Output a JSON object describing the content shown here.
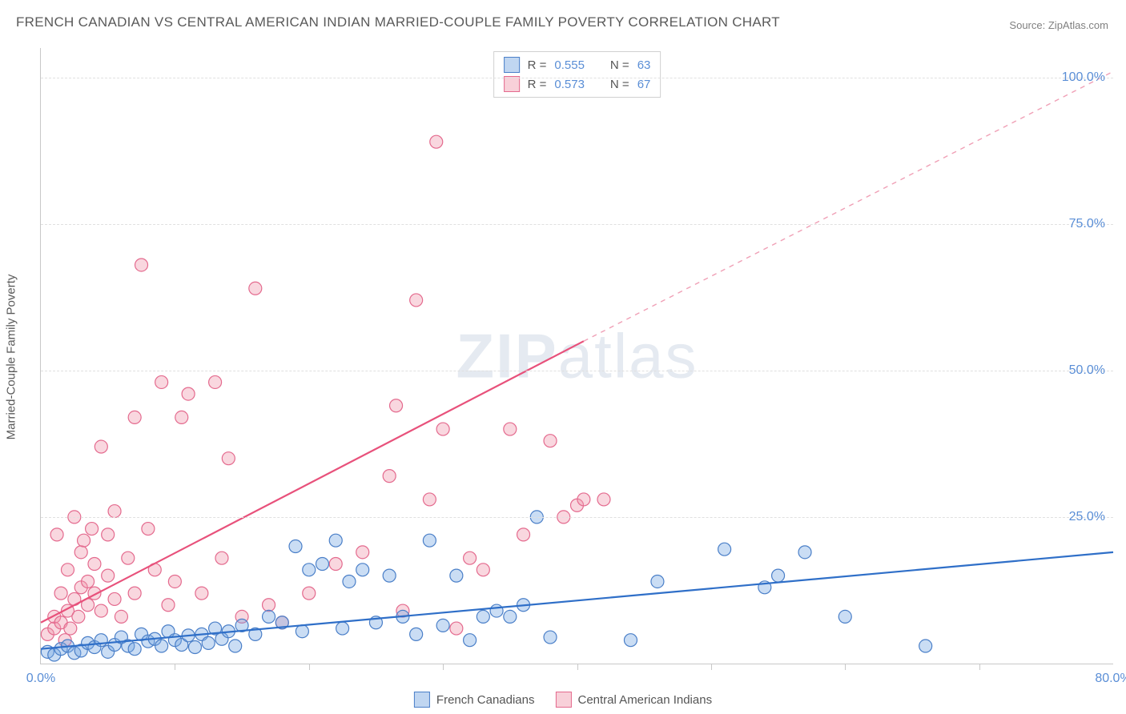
{
  "title": "FRENCH CANADIAN VS CENTRAL AMERICAN INDIAN MARRIED-COUPLE FAMILY POVERTY CORRELATION CHART",
  "source_label": "Source:",
  "source_link_text": "ZipAtlas.com",
  "y_axis_label": "Married-Couple Family Poverty",
  "watermark_a": "ZIP",
  "watermark_b": "atlas",
  "chart": {
    "type": "scatter",
    "xlim": [
      0,
      80
    ],
    "ylim": [
      0,
      105
    ],
    "x_ticks": [
      0,
      80
    ],
    "x_tick_labels": [
      "0.0%",
      "80.0%"
    ],
    "x_minor_ticks": [
      10,
      20,
      30,
      40,
      50,
      60,
      70
    ],
    "y_ticks": [
      25,
      50,
      75,
      100
    ],
    "y_tick_labels": [
      "25.0%",
      "50.0%",
      "75.0%",
      "100.0%"
    ],
    "background_color": "#ffffff",
    "grid_color": "#e0e0e0",
    "marker_radius": 8,
    "marker_stroke_width": 1.2,
    "series": [
      {
        "name": "French Canadians",
        "fill": "rgba(115,165,225,0.38)",
        "stroke": "#4a7fc8",
        "r_label": "R =",
        "r_value": "0.555",
        "n_label": "N =",
        "n_value": "63",
        "trend": {
          "x1": 0,
          "y1": 2.5,
          "x2": 80,
          "y2": 19,
          "dash": false,
          "stroke": "#2f6fc8",
          "width": 2.2
        },
        "points": [
          [
            0.5,
            2
          ],
          [
            1,
            1.5
          ],
          [
            1.5,
            2.5
          ],
          [
            2,
            3
          ],
          [
            2.5,
            1.8
          ],
          [
            3,
            2.2
          ],
          [
            3.5,
            3.5
          ],
          [
            4,
            2.8
          ],
          [
            4.5,
            4
          ],
          [
            5,
            2
          ],
          [
            5.5,
            3.2
          ],
          [
            6,
            4.5
          ],
          [
            6.5,
            3
          ],
          [
            7,
            2.5
          ],
          [
            7.5,
            5
          ],
          [
            8,
            3.8
          ],
          [
            8.5,
            4.2
          ],
          [
            9,
            3
          ],
          [
            9.5,
            5.5
          ],
          [
            10,
            4
          ],
          [
            10.5,
            3.2
          ],
          [
            11,
            4.8
          ],
          [
            11.5,
            2.8
          ],
          [
            12,
            5
          ],
          [
            12.5,
            3.5
          ],
          [
            13,
            6
          ],
          [
            13.5,
            4.2
          ],
          [
            14,
            5.5
          ],
          [
            14.5,
            3
          ],
          [
            15,
            6.5
          ],
          [
            16,
            5
          ],
          [
            17,
            8
          ],
          [
            18,
            7
          ],
          [
            19,
            20
          ],
          [
            19.5,
            5.5
          ],
          [
            20,
            16
          ],
          [
            21,
            17
          ],
          [
            22,
            21
          ],
          [
            22.5,
            6
          ],
          [
            23,
            14
          ],
          [
            24,
            16
          ],
          [
            25,
            7
          ],
          [
            26,
            15
          ],
          [
            27,
            8
          ],
          [
            28,
            5
          ],
          [
            29,
            21
          ],
          [
            30,
            6.5
          ],
          [
            31,
            15
          ],
          [
            32,
            4
          ],
          [
            33,
            8
          ],
          [
            34,
            9
          ],
          [
            35,
            8
          ],
          [
            36,
            10
          ],
          [
            37,
            25
          ],
          [
            38,
            4.5
          ],
          [
            44,
            4
          ],
          [
            46,
            14
          ],
          [
            51,
            19.5
          ],
          [
            54,
            13
          ],
          [
            55,
            15
          ],
          [
            57,
            19
          ],
          [
            60,
            8
          ],
          [
            66,
            3
          ]
        ]
      },
      {
        "name": "Central American Indians",
        "fill": "rgba(240,150,170,0.38)",
        "stroke": "#e46a8e",
        "r_label": "R =",
        "r_value": "0.573",
        "n_label": "N =",
        "n_value": "67",
        "trend": {
          "x1": 0,
          "y1": 7,
          "x2": 40.5,
          "y2": 55,
          "dash": false,
          "stroke": "#e8517b",
          "width": 2.2
        },
        "trend_ext": {
          "x1": 40.5,
          "y1": 55,
          "x2": 80,
          "y2": 101,
          "dash": true,
          "stroke": "#f0a0b6",
          "width": 1.4
        },
        "points": [
          [
            0.5,
            5
          ],
          [
            1,
            6
          ],
          [
            1,
            8
          ],
          [
            1.2,
            22
          ],
          [
            1.5,
            7
          ],
          [
            1.5,
            12
          ],
          [
            1.8,
            4
          ],
          [
            2,
            9
          ],
          [
            2,
            16
          ],
          [
            2.2,
            6
          ],
          [
            2.5,
            11
          ],
          [
            2.5,
            25
          ],
          [
            2.8,
            8
          ],
          [
            3,
            19
          ],
          [
            3,
            13
          ],
          [
            3.2,
            21
          ],
          [
            3.5,
            10
          ],
          [
            3.5,
            14
          ],
          [
            3.8,
            23
          ],
          [
            4,
            12
          ],
          [
            4,
            17
          ],
          [
            4.5,
            37
          ],
          [
            4.5,
            9
          ],
          [
            5,
            15
          ],
          [
            5,
            22
          ],
          [
            5.5,
            11
          ],
          [
            5.5,
            26
          ],
          [
            6,
            8
          ],
          [
            6.5,
            18
          ],
          [
            7,
            12
          ],
          [
            7,
            42
          ],
          [
            7.5,
            68
          ],
          [
            8,
            23
          ],
          [
            8.5,
            16
          ],
          [
            9,
            48
          ],
          [
            9.5,
            10
          ],
          [
            10,
            14
          ],
          [
            10.5,
            42
          ],
          [
            11,
            46
          ],
          [
            12,
            12
          ],
          [
            13,
            48
          ],
          [
            13.5,
            18
          ],
          [
            14,
            35
          ],
          [
            15,
            8
          ],
          [
            16,
            64
          ],
          [
            17,
            10
          ],
          [
            18,
            7
          ],
          [
            20,
            12
          ],
          [
            22,
            17
          ],
          [
            24,
            19
          ],
          [
            26,
            32
          ],
          [
            26.5,
            44
          ],
          [
            27,
            9
          ],
          [
            28,
            62
          ],
          [
            29,
            28
          ],
          [
            29.5,
            89
          ],
          [
            30,
            40
          ],
          [
            31,
            6
          ],
          [
            32,
            18
          ],
          [
            33,
            16
          ],
          [
            35,
            40
          ],
          [
            36,
            22
          ],
          [
            38,
            38
          ],
          [
            39,
            25
          ],
          [
            40,
            27
          ],
          [
            40.5,
            28
          ],
          [
            42,
            28
          ]
        ]
      }
    ]
  },
  "legend_bottom": [
    {
      "swatch": "blue",
      "label": "French Canadians"
    },
    {
      "swatch": "pink",
      "label": "Central American Indians"
    }
  ]
}
